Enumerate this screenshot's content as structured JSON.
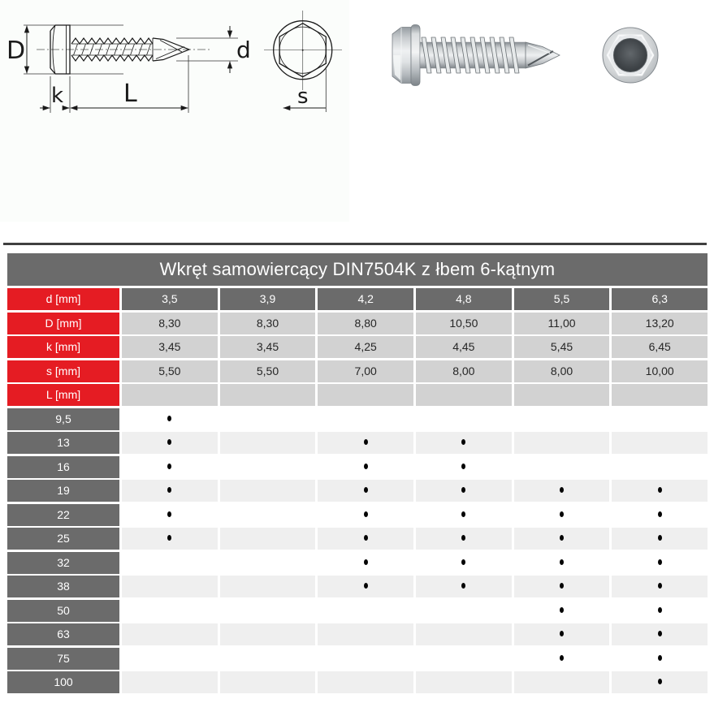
{
  "diagram": {
    "labels": {
      "D": "D",
      "d": "d",
      "k": "k",
      "L": "L",
      "s": "s"
    }
  },
  "table": {
    "title": "Wkręt samowiercący DIN7504K z łbem 6-kątnym",
    "spec_rows": [
      {
        "header": "d [mm]",
        "values_style": "dark",
        "values": [
          "3,5",
          "3,9",
          "4,2",
          "4,8",
          "5,5",
          "6,3"
        ]
      },
      {
        "header": "D [mm]",
        "values_style": "light",
        "values": [
          "8,30",
          "8,30",
          "8,80",
          "10,50",
          "11,00",
          "13,20"
        ]
      },
      {
        "header": "k [mm]",
        "values_style": "light",
        "values": [
          "3,45",
          "3,45",
          "4,25",
          "4,45",
          "5,45",
          "6,45"
        ]
      },
      {
        "header": "s [mm]",
        "values_style": "light",
        "values": [
          "5,50",
          "5,50",
          "7,00",
          "8,00",
          "8,00",
          "10,00"
        ]
      },
      {
        "header": "L [mm]",
        "values_style": "light",
        "values": [
          "",
          "",
          "",
          "",
          "",
          ""
        ]
      }
    ],
    "length_rows": [
      {
        "length": "9,5",
        "availability": [
          true,
          false,
          false,
          false,
          false,
          false
        ]
      },
      {
        "length": "13",
        "availability": [
          true,
          false,
          true,
          true,
          false,
          false
        ]
      },
      {
        "length": "16",
        "availability": [
          true,
          false,
          true,
          true,
          false,
          false
        ]
      },
      {
        "length": "19",
        "availability": [
          true,
          false,
          true,
          true,
          true,
          true
        ]
      },
      {
        "length": "22",
        "availability": [
          true,
          false,
          true,
          true,
          true,
          true
        ]
      },
      {
        "length": "25",
        "availability": [
          true,
          false,
          true,
          true,
          true,
          true
        ]
      },
      {
        "length": "32",
        "availability": [
          false,
          false,
          true,
          true,
          true,
          true
        ]
      },
      {
        "length": "38",
        "availability": [
          false,
          false,
          true,
          true,
          true,
          true
        ]
      },
      {
        "length": "50",
        "availability": [
          false,
          false,
          false,
          false,
          true,
          true
        ]
      },
      {
        "length": "63",
        "availability": [
          false,
          false,
          false,
          false,
          true,
          true
        ]
      },
      {
        "length": "75",
        "availability": [
          false,
          false,
          false,
          false,
          true,
          true
        ]
      },
      {
        "length": "100",
        "availability": [
          false,
          false,
          false,
          false,
          false,
          true
        ]
      }
    ],
    "dot_symbol": "•"
  },
  "colors": {
    "red": "#e51c23",
    "gray": "#6b6b6b",
    "cell_light": "#d2d2d2",
    "row_alt": "#efefef",
    "rule": "#3f3f3f"
  }
}
